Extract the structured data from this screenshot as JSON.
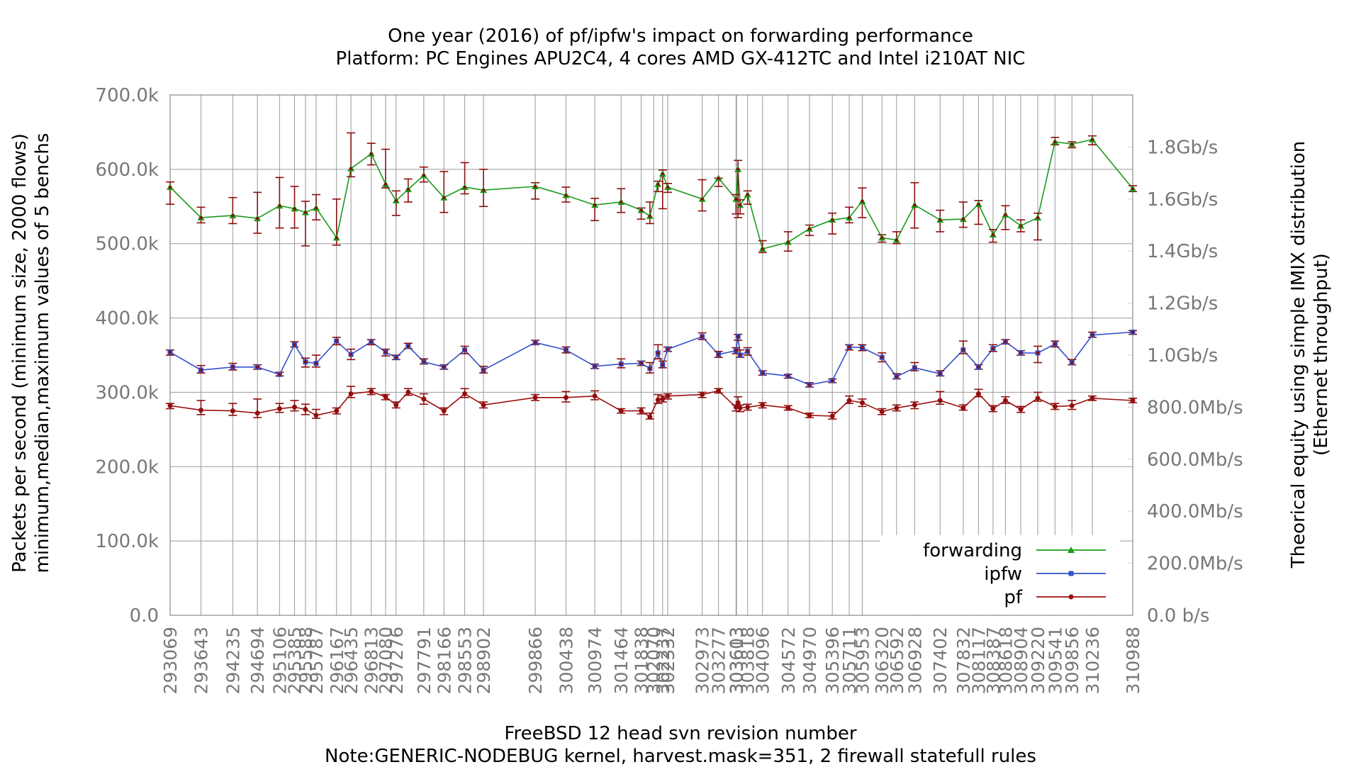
{
  "chart_data": {
    "type": "line",
    "title": "One year (2016) of pf/ipfw's impact on forwarding performance",
    "subtitle": "Platform: PC Engines APU2C4, 4 cores AMD GX-412TC and Intel i210AT NIC",
    "xlabel": "FreeBSD 12 head svn revision number",
    "xlabel_note": "Note:GENERIC-NODEBUG kernel, harvest.mask=351, 2 firewall statefull rules",
    "ylabel": "Packets per second (minimum size, 2000 flows)",
    "ylabel2": "minimum,median,maximum values of 5 benchs",
    "y2label": "Theorical equity using simple IMIX distribution",
    "y2label2": "(Ethernet throughput)",
    "xlim": [
      293069,
      310988
    ],
    "ylim": [
      0,
      700000
    ],
    "y_ticks": [
      "0.0",
      "100.0k",
      "200.0k",
      "300.0k",
      "400.0k",
      "500.0k",
      "600.0k",
      "700.0k"
    ],
    "y2_ticks": [
      "0.0 b/s",
      "200.0Mb/s",
      "400.0Mb/s",
      "600.0Mb/s",
      "800.0Mb/s",
      "1.0Gb/s",
      "1.2Gb/s",
      "1.4Gb/s",
      "1.6Gb/s",
      "1.8Gb/s"
    ],
    "y2_tick_values_bps": [
      0,
      200000000,
      400000000,
      600000000,
      800000000,
      1000000000,
      1200000000,
      1400000000,
      1600000000,
      1800000000
    ],
    "y2_max_bps": 2000000000,
    "x_tick_labels": [
      "293069",
      "293643",
      "294235",
      "294694",
      "295106",
      "295385",
      "295588",
      "295787",
      "296167",
      "296435",
      "296813",
      "297080",
      "297276",
      "297791",
      "298166",
      "298553",
      "298902",
      "299866",
      "300438",
      "300974",
      "301464",
      "301838",
      "302070",
      "302237",
      "302332",
      "302973",
      "303277",
      "303603",
      "303613",
      "303818",
      "304096",
      "304572",
      "304970",
      "305396",
      "305711",
      "305953",
      "306320",
      "306592",
      "306928",
      "307402",
      "307832",
      "308117",
      "308387",
      "308618",
      "308904",
      "309220",
      "309541",
      "309856",
      "310236",
      "310988"
    ],
    "grid": true,
    "legend_position": "bottom-right",
    "series": [
      {
        "name": "forwarding",
        "color": "#1a9a1a",
        "marker": "triangle",
        "x": [
          293069,
          293643,
          294235,
          294694,
          295106,
          295385,
          295588,
          295787,
          296167,
          296435,
          296813,
          297080,
          297276,
          297500,
          297791,
          298166,
          298553,
          298902,
          299866,
          300438,
          300974,
          301464,
          301838,
          302000,
          302150,
          302237,
          302332,
          302973,
          303277,
          303603,
          303640,
          303680,
          303818,
          304096,
          304572,
          304970,
          305396,
          305711,
          305953,
          306320,
          306592,
          306928,
          307402,
          307832,
          308117,
          308387,
          308618,
          308904,
          309220,
          309541,
          309856,
          310236,
          310988
        ],
        "y": [
          576000,
          535000,
          538000,
          534000,
          551000,
          547000,
          542000,
          548000,
          508000,
          601000,
          621000,
          580000,
          558000,
          573000,
          592000,
          562000,
          576000,
          572000,
          577000,
          565000,
          552000,
          556000,
          545000,
          537000,
          580000,
          594000,
          576000,
          560000,
          588000,
          560000,
          600000,
          552000,
          566000,
          493000,
          502000,
          520000,
          532000,
          535000,
          557000,
          508000,
          505000,
          552000,
          532000,
          533000,
          553000,
          512000,
          539000,
          524000,
          535000,
          637000,
          634000,
          640000,
          574000
        ],
        "ymin": [
          553000,
          528000,
          527000,
          514000,
          521000,
          521000,
          497000,
          532000,
          498000,
          590000,
          606000,
          575000,
          538000,
          556000,
          583000,
          542000,
          567000,
          550000,
          560000,
          556000,
          531000,
          542000,
          533000,
          527000,
          570000,
          547000,
          569000,
          544000,
          577000,
          540000,
          535000,
          540000,
          553000,
          488000,
          490000,
          511000,
          513000,
          528000,
          535000,
          502000,
          500000,
          521000,
          516000,
          522000,
          526000,
          502000,
          519000,
          516000,
          505000,
          633000,
          629000,
          633000,
          570000
        ],
        "ymax": [
          583000,
          549000,
          562000,
          569000,
          589000,
          577000,
          557000,
          566000,
          560000,
          649000,
          635000,
          627000,
          571000,
          587000,
          603000,
          597000,
          609000,
          600000,
          582000,
          576000,
          561000,
          574000,
          548000,
          556000,
          584000,
          599000,
          581000,
          586000,
          588000,
          566000,
          612000,
          559000,
          571000,
          504000,
          516000,
          525000,
          541000,
          549000,
          575000,
          512000,
          516000,
          582000,
          545000,
          556000,
          558000,
          519000,
          551000,
          532000,
          541000,
          643000,
          637000,
          645000,
          578000
        ]
      },
      {
        "name": "ipfw",
        "color": "#3350cc",
        "marker": "square",
        "x": [
          293069,
          293643,
          294235,
          294694,
          295106,
          295385,
          295588,
          295787,
          296167,
          296435,
          296813,
          297080,
          297276,
          297500,
          297791,
          298166,
          298553,
          298902,
          299866,
          300438,
          300974,
          301464,
          301838,
          302000,
          302150,
          302237,
          302332,
          302973,
          303277,
          303603,
          303640,
          303680,
          303818,
          304096,
          304572,
          304970,
          305396,
          305711,
          305953,
          306320,
          306592,
          306928,
          307402,
          307832,
          308117,
          308387,
          308618,
          308904,
          309220,
          309541,
          309856,
          310236,
          310988
        ],
        "y": [
          354000,
          330000,
          334000,
          334000,
          324000,
          364000,
          341000,
          339000,
          369000,
          351000,
          368000,
          354000,
          347000,
          362000,
          341000,
          334000,
          357000,
          330000,
          367000,
          357000,
          335000,
          338000,
          339000,
          332000,
          353000,
          337000,
          358000,
          375000,
          351000,
          356000,
          375000,
          350000,
          355000,
          326000,
          322000,
          310000,
          316000,
          361000,
          360000,
          347000,
          321000,
          333000,
          325000,
          357000,
          334000,
          359000,
          368000,
          353000,
          353000,
          365000,
          340000,
          377000,
          381000
        ],
        "ymin": [
          350000,
          326000,
          330000,
          331000,
          322000,
          361000,
          334000,
          334000,
          364000,
          344000,
          364000,
          349000,
          344000,
          359000,
          338000,
          331000,
          352000,
          326000,
          364000,
          353000,
          332000,
          333000,
          336000,
          326000,
          345000,
          333000,
          355000,
          371000,
          347000,
          352000,
          370000,
          347000,
          350000,
          323000,
          319000,
          307000,
          313000,
          357000,
          356000,
          341000,
          318000,
          329000,
          322000,
          352000,
          331000,
          355000,
          365000,
          350000,
          340000,
          361000,
          337000,
          374000,
          378000
        ],
        "ymax": [
          357000,
          336000,
          339000,
          337000,
          327000,
          368000,
          346000,
          350000,
          374000,
          358000,
          371000,
          358000,
          350000,
          366000,
          345000,
          337000,
          362000,
          335000,
          370000,
          361000,
          338000,
          345000,
          342000,
          340000,
          364000,
          342000,
          361000,
          380000,
          355000,
          360000,
          378000,
          357000,
          360000,
          329000,
          324000,
          313000,
          318000,
          364000,
          364000,
          353000,
          325000,
          340000,
          329000,
          369000,
          337000,
          364000,
          371000,
          356000,
          362000,
          369000,
          344000,
          381000,
          383000
        ]
      },
      {
        "name": "pf",
        "color": "#9b0f0f",
        "marker": "dot",
        "x": [
          293069,
          293643,
          294235,
          294694,
          295106,
          295385,
          295588,
          295787,
          296167,
          296435,
          296813,
          297080,
          297276,
          297500,
          297791,
          298166,
          298553,
          298902,
          299866,
          300438,
          300974,
          301464,
          301838,
          302000,
          302150,
          302237,
          302332,
          302973,
          303277,
          303603,
          303640,
          303680,
          303818,
          304096,
          304572,
          304970,
          305396,
          305711,
          305953,
          306320,
          306592,
          306928,
          307402,
          307832,
          308117,
          308387,
          308618,
          308904,
          309220,
          309541,
          309856,
          310236,
          310988
        ],
        "y": [
          282000,
          276000,
          275000,
          272000,
          278000,
          280000,
          277000,
          269000,
          275000,
          298000,
          301000,
          294000,
          283000,
          300000,
          291000,
          275000,
          298000,
          283000,
          293000,
          293000,
          295000,
          275000,
          275000,
          267000,
          290000,
          291000,
          295000,
          297000,
          302000,
          280000,
          286000,
          279000,
          280000,
          283000,
          279000,
          269000,
          268000,
          289000,
          286000,
          274000,
          279000,
          283000,
          289000,
          279000,
          298000,
          278000,
          289000,
          277000,
          292000,
          281000,
          282000,
          292000,
          289000
        ],
        "ymin": [
          278000,
          270000,
          269000,
          266000,
          273000,
          275000,
          270000,
          265000,
          271000,
          293000,
          297000,
          290000,
          279000,
          296000,
          284000,
          270000,
          293000,
          279000,
          289000,
          287000,
          290000,
          272000,
          271000,
          264000,
          285000,
          287000,
          291000,
          293000,
          299000,
          275000,
          279000,
          274000,
          276000,
          279000,
          276000,
          266000,
          264000,
          285000,
          281000,
          270000,
          275000,
          278000,
          284000,
          276000,
          294000,
          274000,
          285000,
          273000,
          288000,
          277000,
          277000,
          289000,
          286000
        ],
        "ymax": [
          285000,
          289000,
          285000,
          291000,
          285000,
          289000,
          284000,
          277000,
          279000,
          308000,
          305000,
          297000,
          287000,
          305000,
          298000,
          279000,
          305000,
          287000,
          297000,
          301000,
          302000,
          278000,
          279000,
          272000,
          297000,
          295000,
          298000,
          300000,
          305000,
          283000,
          294000,
          283000,
          284000,
          286000,
          282000,
          272000,
          273000,
          295000,
          291000,
          278000,
          283000,
          287000,
          301000,
          283000,
          304000,
          282000,
          294000,
          281000,
          300000,
          285000,
          289000,
          295000,
          292000
        ]
      }
    ]
  }
}
